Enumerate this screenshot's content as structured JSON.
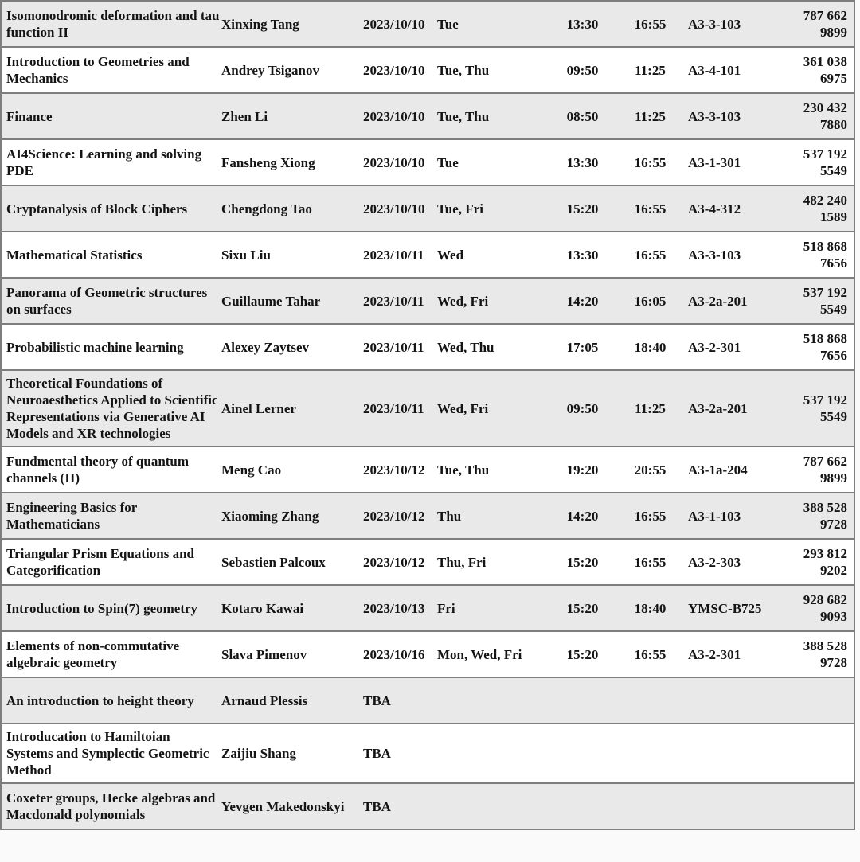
{
  "table": {
    "description": "course-schedule-table",
    "columns": [
      "course",
      "instructor",
      "date",
      "days",
      "start",
      "end",
      "room",
      "id"
    ],
    "colors": {
      "row_shaded": "#e9e9e9",
      "row_plain": "#ffffff",
      "border": "#7e7e7e",
      "text": "#141414"
    },
    "rows": [
      {
        "course": "Isomonodromic deformation and tau function II",
        "instructor": "Xinxing Tang",
        "date": "2023/10/10",
        "days": "Tue",
        "start": "13:30",
        "end": "16:55",
        "room": "A3-3-103",
        "id": "787 662 9899"
      },
      {
        "course": "Introduction to Geometries and Mechanics",
        "instructor": "Andrey Tsiganov",
        "date": "2023/10/10",
        "days": "Tue, Thu",
        "start": "09:50",
        "end": "11:25",
        "room": "A3-4-101",
        "id": "361 038 6975"
      },
      {
        "course": "Finance",
        "instructor": "Zhen Li",
        "date": "2023/10/10",
        "days": "Tue, Thu",
        "start": "08:50",
        "end": "11:25",
        "room": "A3-3-103",
        "id": "230 432 7880"
      },
      {
        "course": "AI4Science: Learning and solving PDE",
        "instructor": "Fansheng Xiong",
        "date": "2023/10/10",
        "days": "Tue",
        "start": "13:30",
        "end": "16:55",
        "room": "A3-1-301",
        "id": "537 192 5549"
      },
      {
        "course": "Cryptanalysis of Block Ciphers",
        "instructor": "Chengdong Tao",
        "date": "2023/10/10",
        "days": "Tue, Fri",
        "start": "15:20",
        "end": "16:55",
        "room": "A3-4-312",
        "id": "482 240 1589"
      },
      {
        "course": "Mathematical Statistics",
        "instructor": "Sixu Liu",
        "date": "2023/10/11",
        "days": "Wed",
        "start": "13:30",
        "end": "16:55",
        "room": "A3-3-103",
        "id": "518 868 7656"
      },
      {
        "course": "Panorama of Geometric structures on surfaces",
        "instructor": "Guillaume Tahar",
        "date": "2023/10/11",
        "days": "Wed, Fri",
        "start": "14:20",
        "end": "16:05",
        "room": "A3-2a-201",
        "id": "537 192 5549"
      },
      {
        "course": "Probabilistic machine learning",
        "instructor": "Alexey Zaytsev",
        "date": "2023/10/11",
        "days": "Wed, Thu",
        "start": "17:05",
        "end": "18:40",
        "room": "A3-2-301",
        "id": "518 868 7656"
      },
      {
        "course": "Theoretical Foundations of Neuroaesthetics Applied to Scientific Representations via Generative AI Models and XR technologies",
        "instructor": "Ainel Lerner",
        "date": "2023/10/11",
        "days": "Wed, Fri",
        "start": "09:50",
        "end": "11:25",
        "room": "A3-2a-201",
        "id": "537 192 5549"
      },
      {
        "course": "Fundmental theory of quantum channels (II)",
        "instructor": "Meng Cao",
        "date": "2023/10/12",
        "days": "Tue, Thu",
        "start": "19:20",
        "end": "20:55",
        "room": "A3-1a-204",
        "id": "787 662 9899"
      },
      {
        "course": "Engineering Basics for Mathematicians",
        "instructor": "Xiaoming Zhang",
        "date": "2023/10/12",
        "days": "Thu",
        "start": "14:20",
        "end": "16:55",
        "room": "A3-1-103",
        "id": "388 528 9728"
      },
      {
        "course": "Triangular Prism Equations and Categorification",
        "instructor": "Sebastien Palcoux",
        "date": "2023/10/12",
        "days": "Thu, Fri",
        "start": "15:20",
        "end": "16:55",
        "room": "A3-2-303",
        "id": "293 812 9202"
      },
      {
        "course": "Introduction to Spin(7) geometry",
        "instructor": "Kotaro Kawai",
        "date": "2023/10/13",
        "days": "Fri",
        "start": "15:20",
        "end": "18:40",
        "room": "YMSC-B725",
        "id": "928 682 9093"
      },
      {
        "course": "Elements of non-commutative algebraic geometry",
        "instructor": "Slava Pimenov",
        "date": "2023/10/16",
        "days": "Mon, Wed, Fri",
        "start": "15:20",
        "end": "16:55",
        "room": "A3-2-301",
        "id": "388 528 9728"
      },
      {
        "course": "An introduction to height theory",
        "instructor": "Arnaud Plessis",
        "date": "TBA",
        "days": "",
        "start": "",
        "end": "",
        "room": "",
        "id": ""
      },
      {
        "course": "Introducation to Hamiltoian Systems and Symplectic Geometric Method",
        "instructor": "Zaijiu Shang",
        "date": "TBA",
        "days": "",
        "start": "",
        "end": "",
        "room": "",
        "id": ""
      },
      {
        "course": "Coxeter groups, Hecke algebras and Macdonald polynomials",
        "instructor": "Yevgen Makedonskyi",
        "date": "TBA",
        "days": "",
        "start": "",
        "end": "",
        "room": "",
        "id": ""
      }
    ]
  }
}
